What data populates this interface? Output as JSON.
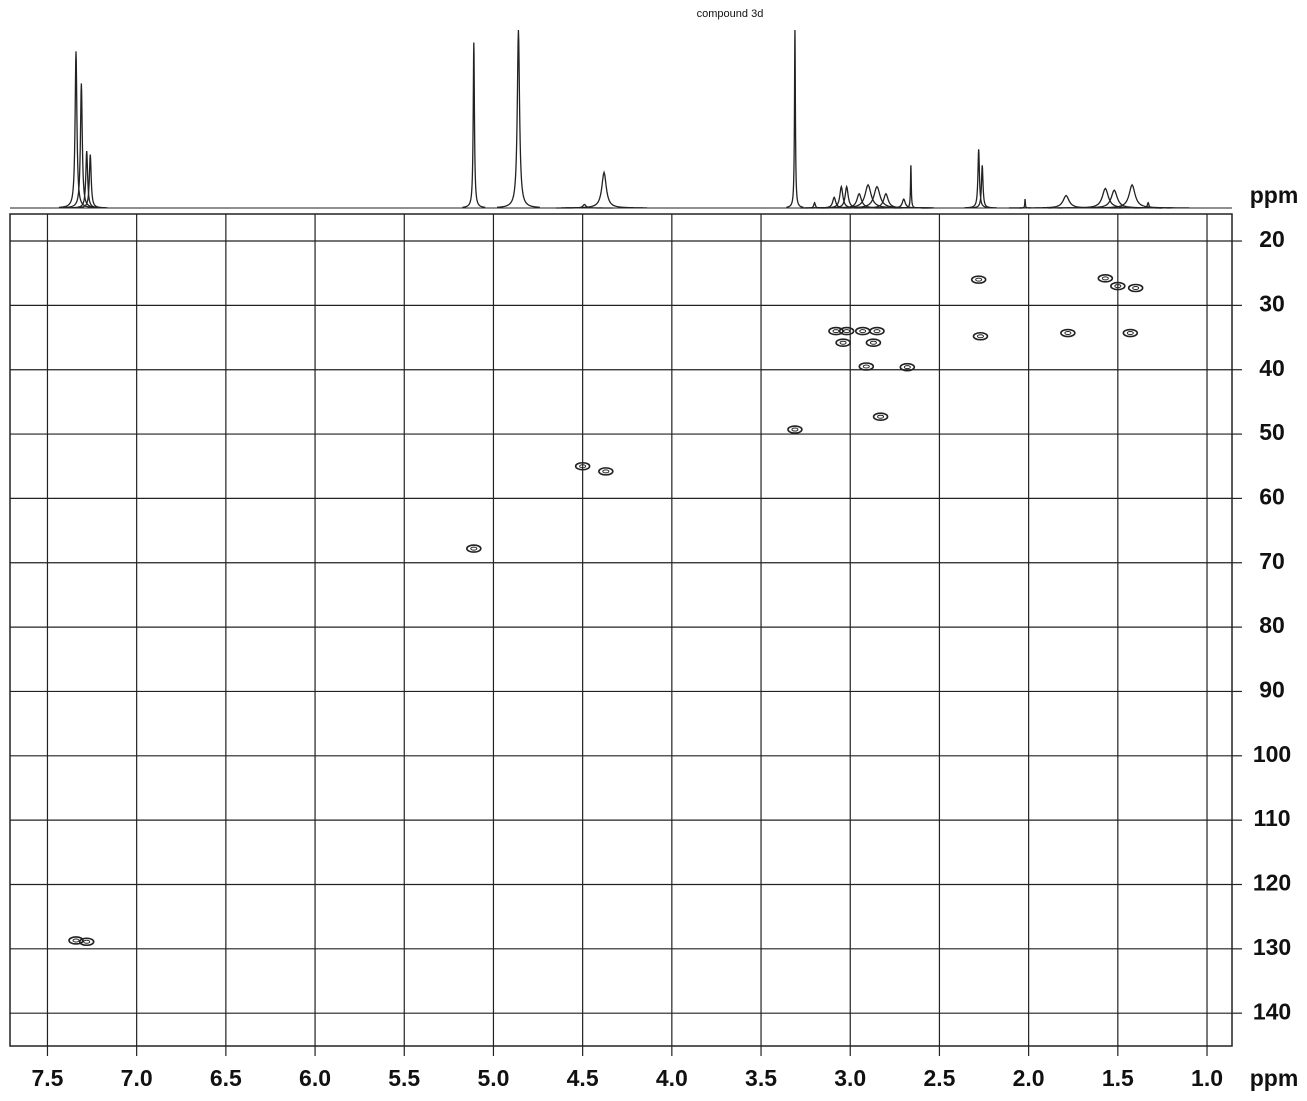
{
  "chart_data": {
    "type": "scatter",
    "title": "compound 3d",
    "xlabel": "ppm",
    "ylabel": "ppm",
    "xlim": [
      7.71,
      0.86
    ],
    "ylim": [
      15.8,
      145.1
    ],
    "xticks": [
      7.5,
      {
        "value": 7,
        "label": "7.0"
      },
      6.5,
      {
        "value": 6,
        "label": "6.0"
      },
      5.5,
      {
        "value": 5,
        "label": "5.0"
      },
      4.5,
      {
        "value": 4,
        "label": "4.0"
      },
      3.5,
      {
        "value": 3,
        "label": "3.0"
      },
      2.5,
      {
        "value": 2,
        "label": "2.0"
      },
      1.5,
      {
        "value": 1,
        "label": "1.0"
      }
    ],
    "yticks": [
      20,
      30,
      40,
      50,
      60,
      70,
      80,
      90,
      100,
      110,
      120,
      130,
      140
    ],
    "grid": true,
    "color": "#222222",
    "x": [
      7.34,
      7.28,
      5.11,
      4.5,
      4.37,
      3.31,
      3.08,
      3.02,
      2.93,
      2.85,
      3.04,
      2.87,
      2.91,
      2.68,
      2.83,
      2.27,
      2.28,
      1.57,
      1.5,
      1.4,
      1.78,
      1.43
    ],
    "values": [
      128.7,
      128.9,
      67.8,
      55,
      55.8,
      49.3,
      34,
      34,
      34,
      34,
      35.8,
      35.8,
      39.5,
      39.6,
      47.3,
      34.8,
      26,
      25.8,
      27,
      27.3,
      34.3,
      34.3
    ],
    "projection": {
      "x": [
        7.34,
        7.31,
        7.28,
        7.26,
        5.11,
        4.86,
        4.49,
        4.38,
        3.31,
        3.2,
        3.09,
        3.05,
        3.02,
        2.95,
        2.9,
        2.85,
        2.8,
        2.7,
        2.66,
        2.28,
        2.26,
        2.02,
        1.79,
        1.57,
        1.52,
        1.42,
        1.33
      ],
      "height": [
        88,
        70,
        32,
        30,
        93,
        100,
        2,
        20,
        100,
        3,
        6,
        12,
        12,
        8,
        13,
        12,
        8,
        5,
        24,
        33,
        24,
        5,
        7,
        11,
        10,
        13,
        3
      ],
      "width": [
        0.012,
        0.012,
        0.012,
        0.012,
        0.008,
        0.015,
        0.02,
        0.03,
        0.006,
        0.01,
        0.02,
        0.02,
        0.02,
        0.03,
        0.04,
        0.04,
        0.03,
        0.02,
        0.005,
        0.01,
        0.01,
        0.004,
        0.04,
        0.04,
        0.04,
        0.04,
        0.01
      ]
    }
  }
}
